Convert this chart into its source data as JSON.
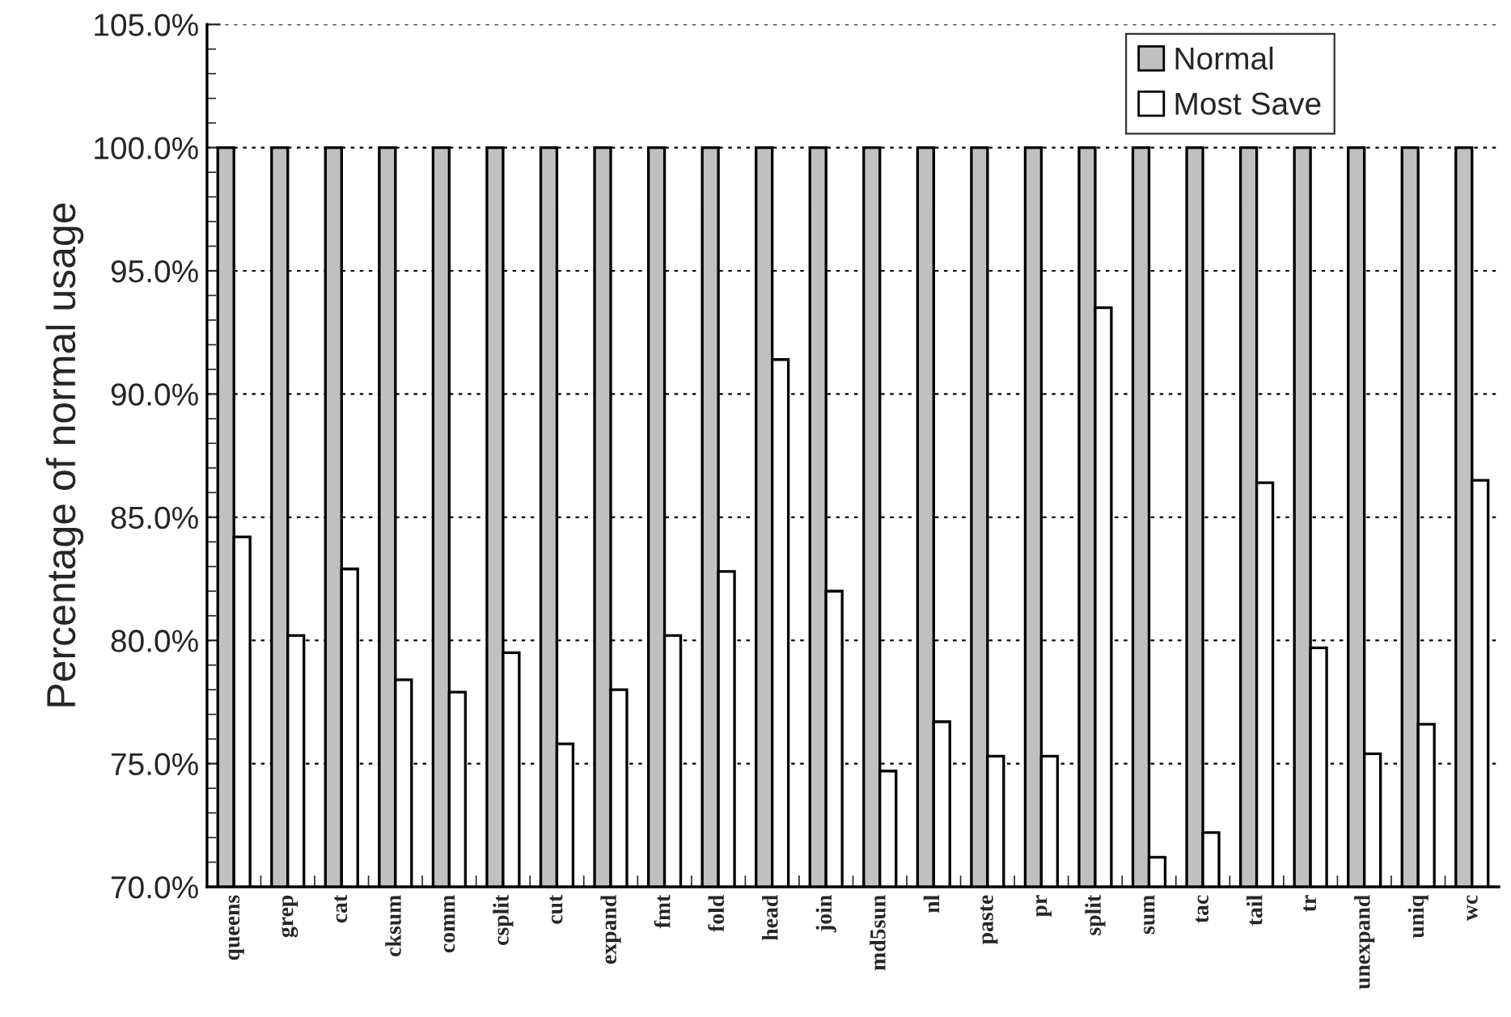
{
  "chart_data": {
    "type": "bar",
    "ylabel": "Percentage of normal usage",
    "categories": [
      "queens",
      "grep",
      "cat",
      "cksum",
      "comm",
      "csplit",
      "cut",
      "expand",
      "fmt",
      "fold",
      "head",
      "join",
      "md5sun",
      "nl",
      "paste",
      "pr",
      "split",
      "sum",
      "tac",
      "tail",
      "tr",
      "unexpand",
      "uniq",
      "wc"
    ],
    "series": [
      {
        "name": "Normal",
        "color": "#c0c0c0",
        "values": [
          100,
          100,
          100,
          100,
          100,
          100,
          100,
          100,
          100,
          100,
          100,
          100,
          100,
          100,
          100,
          100,
          100,
          100,
          100,
          100,
          100,
          100,
          100,
          100
        ]
      },
      {
        "name": "Most Save",
        "color": "#ffffff",
        "values": [
          84.2,
          80.2,
          82.9,
          78.4,
          77.9,
          79.5,
          75.8,
          78.0,
          80.2,
          82.8,
          91.4,
          82.0,
          74.7,
          76.7,
          75.3,
          75.3,
          93.5,
          71.2,
          72.2,
          86.4,
          79.7,
          75.4,
          76.6,
          86.5
        ]
      }
    ],
    "ylim": [
      70,
      105
    ],
    "yticks": [
      {
        "value": 70,
        "label": "70.0%"
      },
      {
        "value": 75,
        "label": "75.0%"
      },
      {
        "value": 80,
        "label": "80.0%"
      },
      {
        "value": 85,
        "label": "85.0%"
      },
      {
        "value": 90,
        "label": "90.0%"
      },
      {
        "value": 95,
        "label": "95.0%"
      },
      {
        "value": 100,
        "label": "100.0%"
      },
      {
        "value": 105,
        "label": "105.0%"
      }
    ],
    "grid": "y",
    "legend": "top right"
  }
}
